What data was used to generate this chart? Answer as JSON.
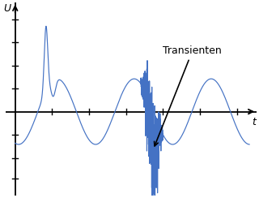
{
  "title": "",
  "xlabel": "t",
  "ylabel": "U",
  "line_color": "#4472C4",
  "axis_color": "#000000",
  "annotation_text": "Transienten",
  "annotation_color": "#000000",
  "annotation_fontsize": 9,
  "figsize": [
    3.2,
    2.44
  ],
  "dpi": 100
}
